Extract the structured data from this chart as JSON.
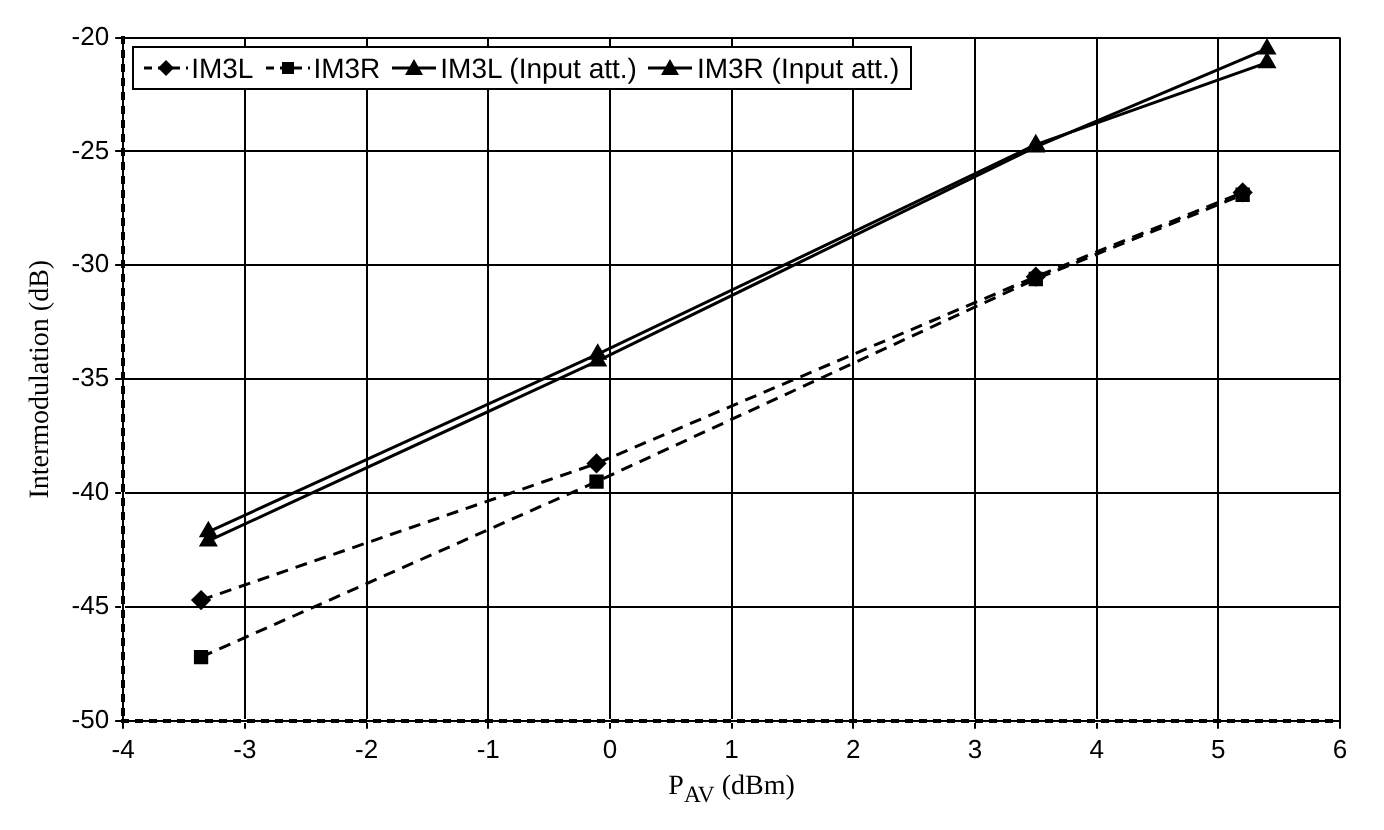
{
  "chart_data": {
    "type": "line",
    "xlabel": "P$_{AV}$ (dBm)",
    "ylabel": "Intermodulation (dB)",
    "xlim": [
      -4,
      6
    ],
    "xticks": [
      -4,
      -3,
      -2,
      -1,
      0,
      1,
      2,
      3,
      4,
      5,
      6
    ],
    "ylim": [
      -50,
      -20
    ],
    "yticks": [
      -50,
      -45,
      -40,
      -35,
      -30,
      -25,
      -20
    ],
    "grid": true,
    "legend": "top left",
    "series": [
      {
        "name": "IM3L",
        "color": "#000000",
        "marker": "diamond",
        "line_style": "dashed",
        "x": [
          -3.36,
          -0.11,
          3.5,
          5.2
        ],
        "values": [
          -44.7,
          -38.7,
          -30.5,
          -26.8
        ]
      },
      {
        "name": "IM3R",
        "color": "#000000",
        "marker": "square",
        "line_style": "dashed",
        "x": [
          -3.36,
          -0.11,
          3.5,
          5.2
        ],
        "values": [
          -47.2,
          -39.5,
          -30.6,
          -26.9
        ]
      },
      {
        "name": "IM3L (Input att.)",
        "color": "#000000",
        "marker": "triangle",
        "line_style": "solid",
        "x": [
          -3.3,
          -0.1,
          3.5,
          5.4
        ],
        "values": [
          -41.7,
          -33.9,
          -24.7,
          -21.1
        ]
      },
      {
        "name": "IM3R (Input att.)",
        "color": "#000000",
        "marker": "triangle",
        "line_style": "solid",
        "x": [
          -3.3,
          -0.1,
          3.5,
          5.4
        ],
        "values": [
          -42.1,
          -34.2,
          -24.8,
          -20.5
        ]
      }
    ]
  }
}
